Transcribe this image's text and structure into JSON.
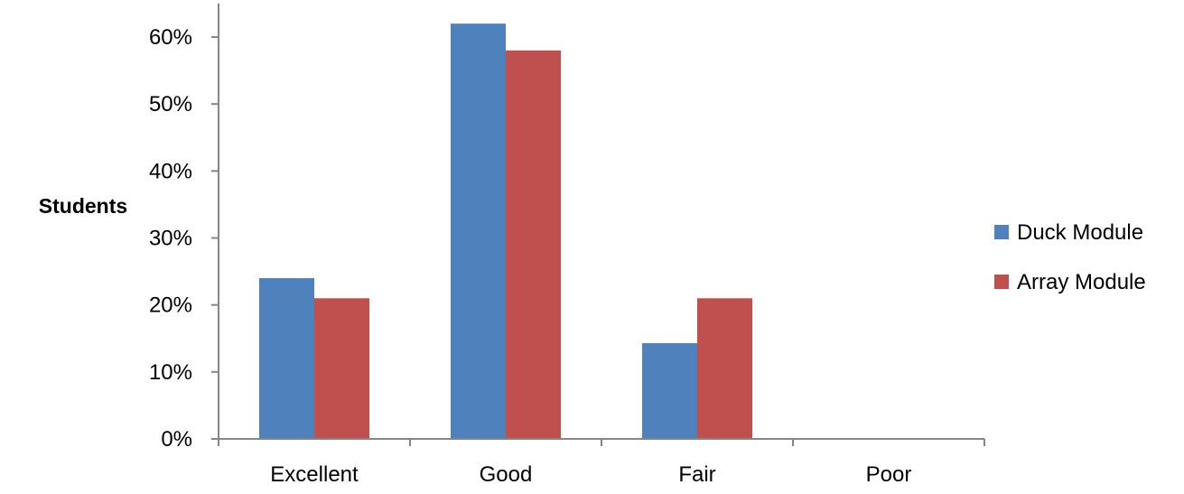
{
  "chart_data": {
    "type": "bar",
    "title": "",
    "xlabel": "",
    "ylabel": "Students",
    "categories": [
      "Excellent",
      "Good",
      "Fair",
      "Poor"
    ],
    "series": [
      {
        "name": "Duck Module",
        "values": [
          0.24,
          0.62,
          0.143,
          0
        ],
        "color": "#4F81BD"
      },
      {
        "name": "Array Module",
        "values": [
          0.21,
          0.58,
          0.21,
          0
        ],
        "color": "#C0504D"
      }
    ],
    "ylim": [
      0,
      0.65
    ],
    "yticks": [
      0,
      0.1,
      0.2,
      0.3,
      0.4,
      0.5,
      0.6
    ],
    "ytick_labels": [
      "0%",
      "10%",
      "20%",
      "30%",
      "40%",
      "50%",
      "60%"
    ],
    "grid": false,
    "legend_position": "right"
  }
}
